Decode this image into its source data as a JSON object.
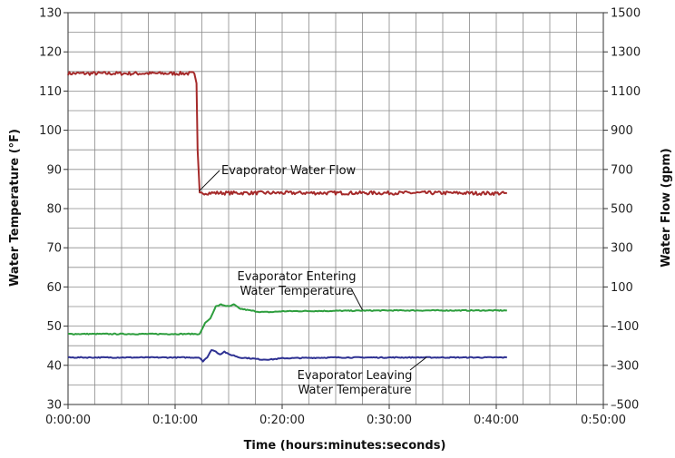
{
  "chart_data": {
    "type": "line",
    "xlabel": "Time (hours:minutes:seconds)",
    "ylabel_left": "Water Temperature (°F)",
    "ylabel_right": "Water Flow (gpm)",
    "x_unit": "minutes",
    "xlim": [
      0,
      50
    ],
    "x_ticks": [
      0,
      10,
      20,
      30,
      40,
      50
    ],
    "x_tick_labels": [
      "0:00:00",
      "0:10:00",
      "0:20:00",
      "0:30:00",
      "0:40:00",
      "0:50:00"
    ],
    "ylim_left": [
      30,
      130
    ],
    "y_ticks_left": [
      30,
      40,
      50,
      60,
      70,
      80,
      90,
      100,
      110,
      120,
      130
    ],
    "ylim_right": [
      -500,
      1500
    ],
    "y_ticks_right": [
      -500,
      -300,
      -100,
      100,
      300,
      500,
      700,
      900,
      1100,
      1300,
      1500
    ],
    "grid": true,
    "series": [
      {
        "name": "Evaporator Water Flow",
        "axis": "right",
        "color": "#a52a2a",
        "x": [
          0,
          5,
          11.8,
          12.0,
          12.1,
          12.3,
          12.6,
          15,
          20,
          25,
          30,
          35,
          40,
          41
        ],
        "values": [
          1190,
          1190,
          1190,
          1140,
          800,
          575,
          580,
          580,
          580,
          580,
          580,
          580,
          578,
          578
        ]
      },
      {
        "name": "Evaporator Entering Water Temperature",
        "axis": "left",
        "color": "#2e9e3e",
        "x": [
          0,
          5,
          10,
          12.3,
          12.8,
          13.3,
          13.8,
          14.3,
          15,
          15.5,
          16,
          17,
          18,
          19,
          20,
          25,
          30,
          35,
          41
        ],
        "values": [
          48,
          48,
          48,
          48,
          50.8,
          52,
          55,
          55.5,
          55,
          55.5,
          54.5,
          54,
          53.6,
          53.6,
          53.8,
          53.9,
          54,
          54,
          54
        ]
      },
      {
        "name": "Evaporator Leaving Water Temperature",
        "axis": "left",
        "color": "#2e3192",
        "x": [
          0,
          5,
          10,
          12.3,
          12.6,
          13,
          13.4,
          13.8,
          14.2,
          14.6,
          15,
          15.5,
          16,
          17,
          18,
          19,
          20,
          25,
          30,
          35,
          41
        ],
        "values": [
          42,
          42,
          42,
          42,
          41,
          42,
          44,
          43.5,
          42.8,
          43.5,
          42.8,
          42.5,
          42,
          41.8,
          41.5,
          41.5,
          41.8,
          42,
          42,
          42,
          42
        ]
      }
    ],
    "annotations": [
      {
        "text": "Evaporator Water Flow",
        "lines": [
          "Evaporator Water Flow"
        ]
      },
      {
        "text": "Evaporator Entering Water Temperature",
        "lines": [
          "Evaporator Entering",
          "Water Temperature"
        ]
      },
      {
        "text": "Evaporator Leaving Water Temperature",
        "lines": [
          "Evaporator Leaving",
          "Water Temperature"
        ]
      }
    ]
  }
}
